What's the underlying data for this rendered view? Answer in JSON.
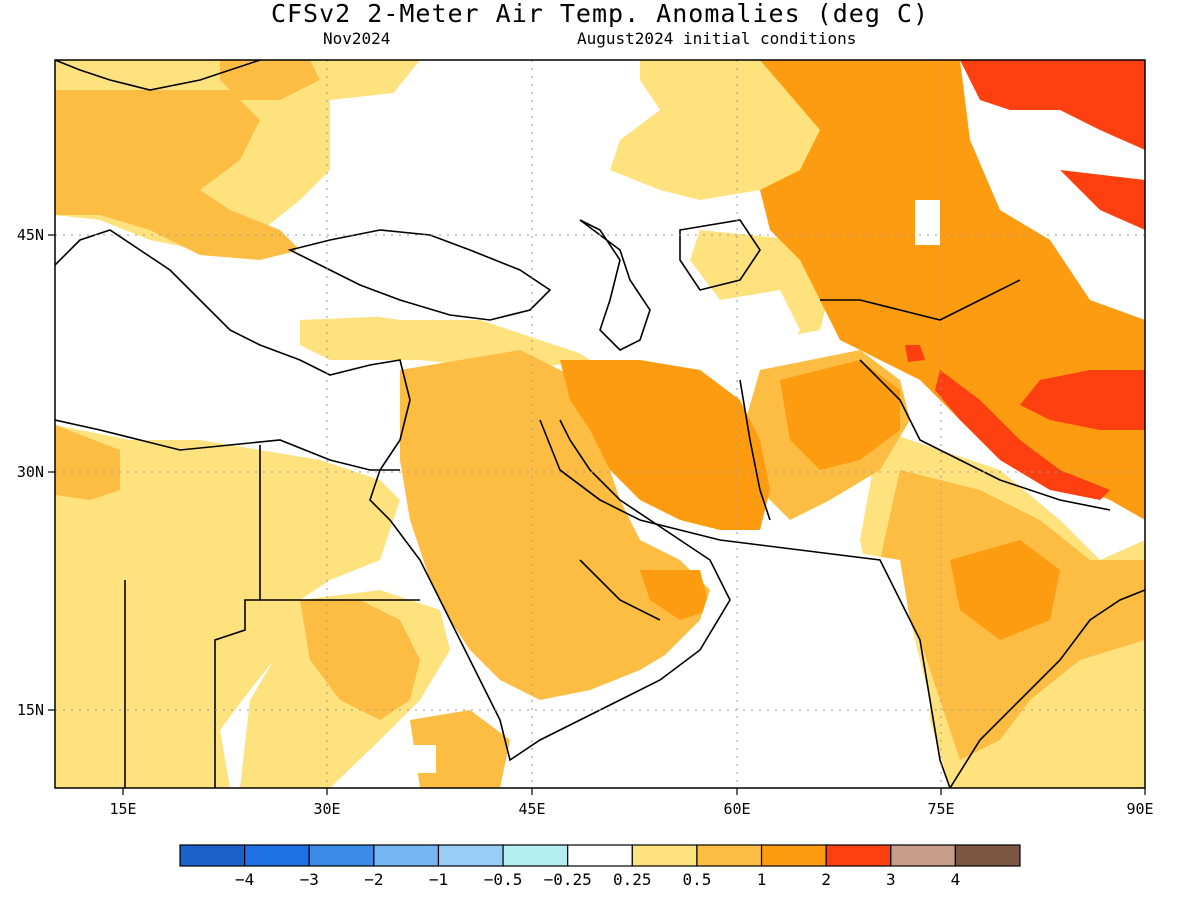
{
  "title": "CFSv2 2-Meter Air Temp. Anomalies (deg C)",
  "subtitle_left": "Nov2024",
  "subtitle_right": "August2024 initial conditions",
  "lat_labels": [
    "45N",
    "30N",
    "15N"
  ],
  "lon_labels": [
    "15E",
    "30E",
    "45E",
    "60E",
    "75E",
    "90E"
  ],
  "colorbar": {
    "tick_labels": [
      "-4",
      "-3",
      "-2",
      "-1",
      "-0.5",
      "-0.25",
      "0.25",
      "0.5",
      "1",
      "2",
      "3",
      "4"
    ],
    "colors": [
      "#1a61c9",
      "#1f6fe5",
      "#3d8be8",
      "#77b6f5",
      "#97cdf6",
      "#b2eef2",
      "#ffffff",
      "#fee27e",
      "#fdbd43",
      "#fd9c11",
      "#fe3f10",
      "#c69e8a",
      "#7b5743"
    ]
  },
  "colors": {
    "light_yellow": "#fee27e",
    "light_orange": "#fdbd43",
    "orange": "#fd9c11",
    "red": "#fe3f10",
    "light_cyan": "#b2eef2"
  }
}
